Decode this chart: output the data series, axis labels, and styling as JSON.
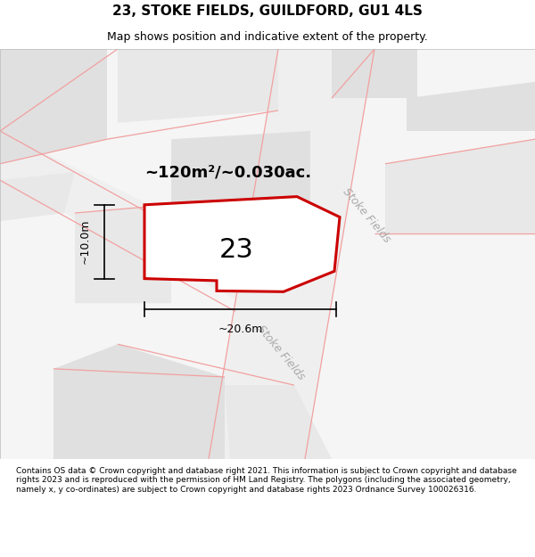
{
  "title": "23, STOKE FIELDS, GUILDFORD, GU1 4LS",
  "subtitle": "Map shows position and indicative extent of the property.",
  "footer": "Contains OS data © Crown copyright and database right 2021. This information is subject to Crown copyright and database rights 2023 and is reproduced with the permission of HM Land Registry. The polygons (including the associated geometry, namely x, y co-ordinates) are subject to Crown copyright and database rights 2023 Ordnance Survey 100026316.",
  "area_label": "~120m²/~0.030ac.",
  "number_label": "23",
  "width_label": "~20.6m",
  "height_label": "~10.0m",
  "plot_fill": "#ffffff",
  "plot_outline": "#cc0000",
  "road_label1": "Stoke Fields",
  "road_label2": "Stoke Fields",
  "map_bg": "#f5f5f5",
  "block_color1": "#e0e0e0",
  "block_color2": "#e8e8e8",
  "road_band_color": "#ebebeb",
  "road_line_color": "#f2a0a0",
  "title_fontsize": 11,
  "subtitle_fontsize": 9,
  "area_fontsize": 13,
  "number_fontsize": 22,
  "dim_fontsize": 9,
  "road_fontsize": 9,
  "footer_fontsize": 6.5
}
